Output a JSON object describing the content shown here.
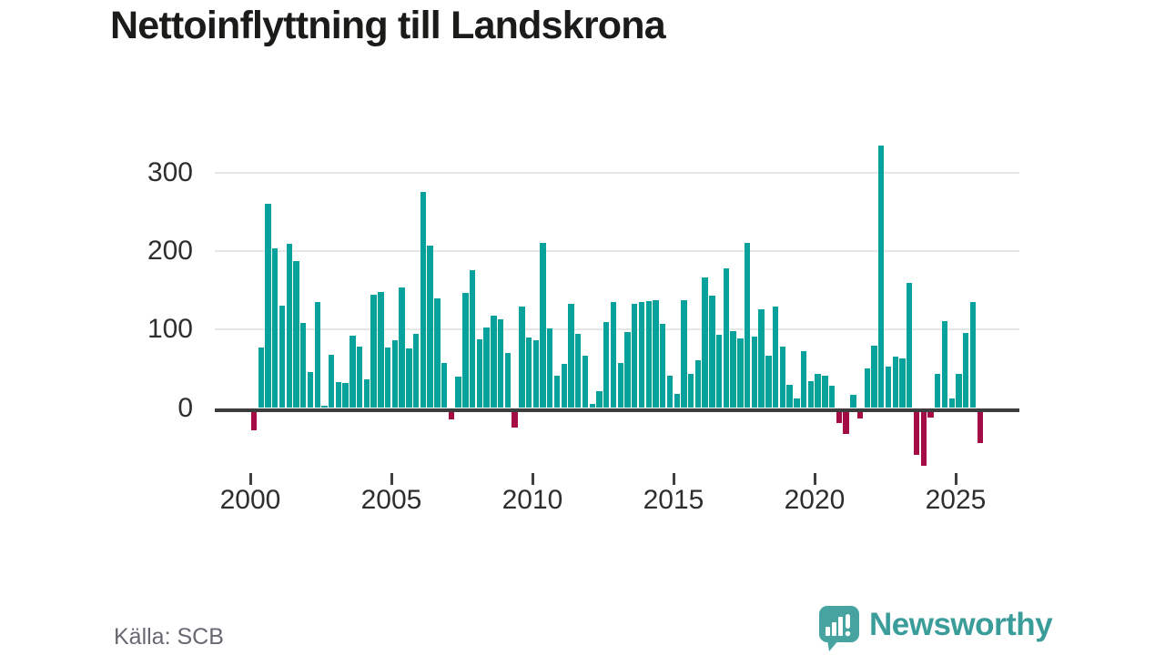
{
  "chart_data": {
    "type": "bar",
    "title": "Nettoinflyttning till Landskrona",
    "source": "Källa: SCB",
    "frequency": "quarterly",
    "x_start": "2000 Q1",
    "x_end": "2025 Q4",
    "values": [
      -24,
      77,
      260,
      204,
      131,
      209,
      187,
      109,
      46,
      135,
      3,
      68,
      33,
      32,
      92,
      78,
      37,
      145,
      148,
      77,
      87,
      154,
      76,
      94,
      275,
      207,
      140,
      57,
      -10,
      40,
      147,
      176,
      88,
      103,
      118,
      113,
      70,
      -21,
      129,
      90,
      86,
      210,
      102,
      41,
      56,
      133,
      94,
      67,
      5,
      22,
      110,
      135,
      57,
      97,
      133,
      135,
      136,
      138,
      107,
      41,
      18,
      138,
      44,
      61,
      166,
      143,
      93,
      178,
      98,
      89,
      211,
      91,
      126,
      67,
      129,
      78,
      30,
      12,
      72,
      34,
      43,
      41,
      29,
      -15,
      -29,
      17,
      -9,
      50,
      79,
      335,
      53,
      65,
      63,
      160,
      -56,
      -70,
      -8,
      43,
      111,
      12,
      43,
      96,
      135,
      -41
    ],
    "x_tick_labels": [
      "2000",
      "2005",
      "2010",
      "2015",
      "2020",
      "2025"
    ],
    "y_ticks": [
      0,
      100,
      200,
      300
    ],
    "ylim": [
      -80,
      345
    ],
    "grid": true,
    "legend": false,
    "colors": {
      "positive": "#08a29c",
      "negative": "#a30c44",
      "axis": "#3c3c3c",
      "gridline": "#e6e6e6",
      "brand_teal": "#3b9d9a"
    }
  },
  "branding": {
    "name": "Newsworthy"
  }
}
